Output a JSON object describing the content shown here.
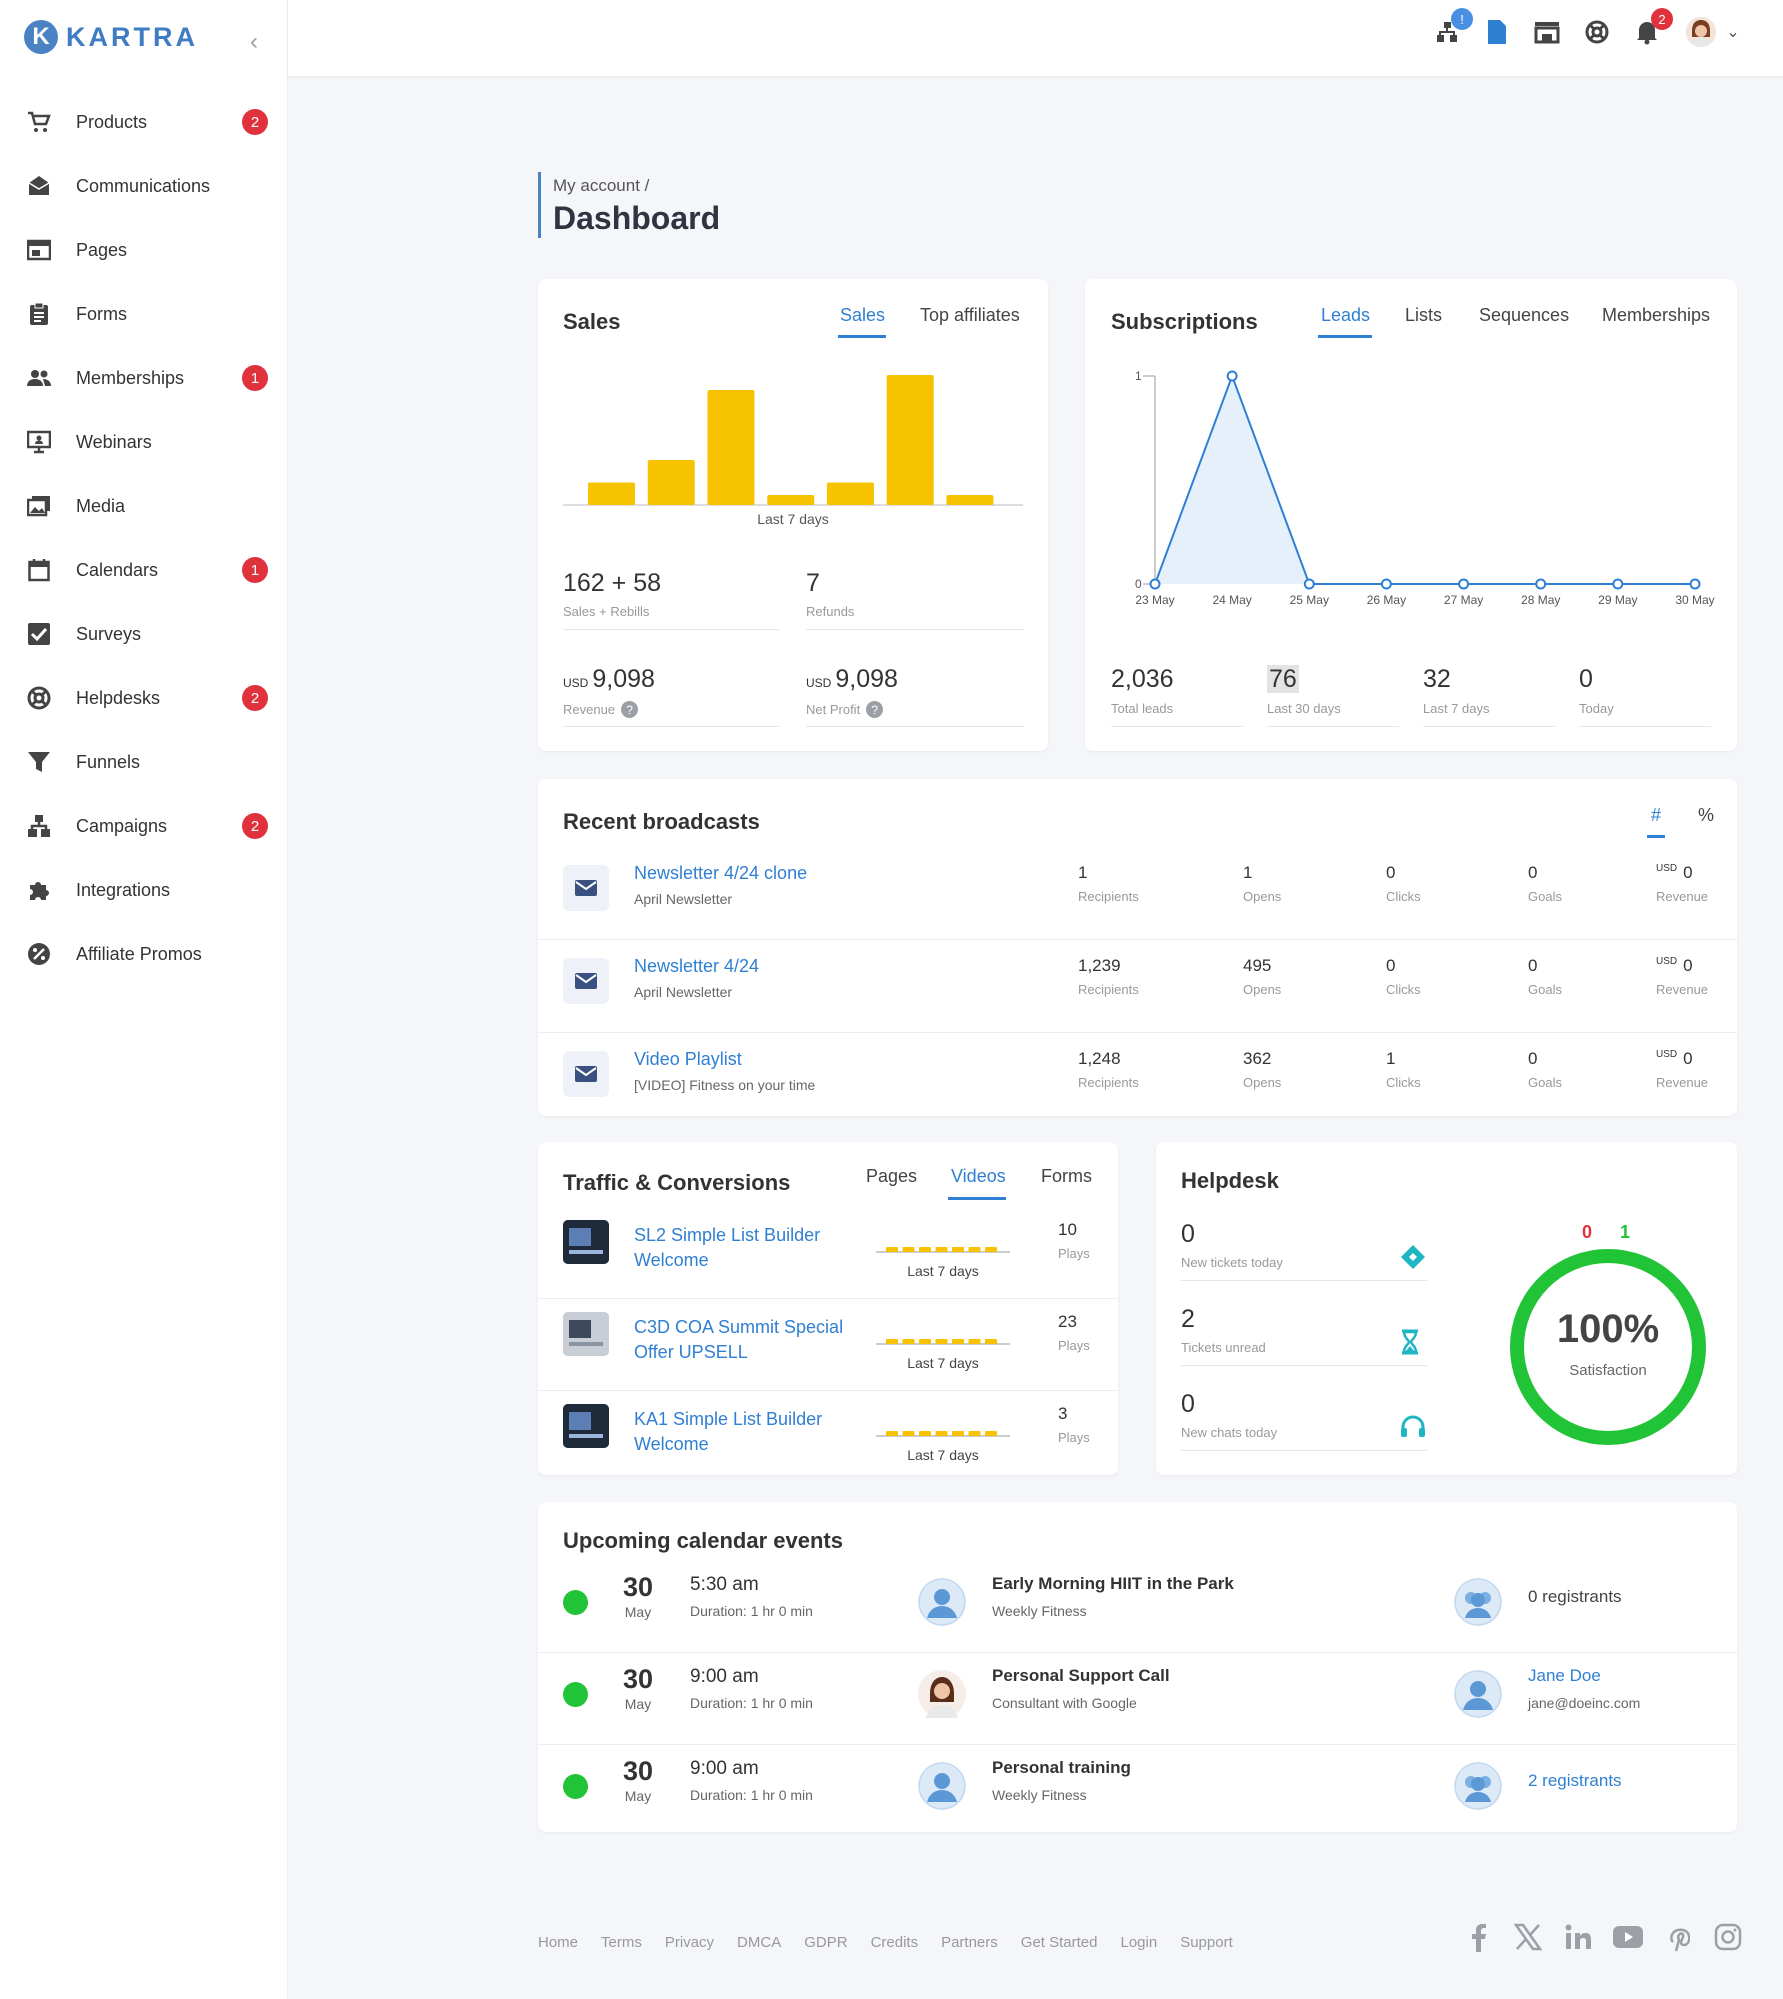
{
  "brand": {
    "name": "KARTRA",
    "accent": "#2f7fd3",
    "badge_color": "#e0323c",
    "chart_color": "#f7c300",
    "satisfaction_color": "#21c436"
  },
  "sidebar": {
    "items": [
      {
        "label": "Products",
        "icon": "cart-icon",
        "badge": "2"
      },
      {
        "label": "Communications",
        "icon": "envelope-open-icon",
        "badge": null
      },
      {
        "label": "Pages",
        "icon": "browser-window-icon",
        "badge": null
      },
      {
        "label": "Forms",
        "icon": "clipboard-icon",
        "badge": null
      },
      {
        "label": "Memberships",
        "icon": "people-icon",
        "badge": "1"
      },
      {
        "label": "Webinars",
        "icon": "presentation-icon",
        "badge": null
      },
      {
        "label": "Media",
        "icon": "photos-icon",
        "badge": null
      },
      {
        "label": "Calendars",
        "icon": "calendar-icon",
        "badge": "1"
      },
      {
        "label": "Surveys",
        "icon": "checkbox-icon",
        "badge": null
      },
      {
        "label": "Helpdesks",
        "icon": "lifebuoy-icon",
        "badge": "2"
      },
      {
        "label": "Funnels",
        "icon": "funnel-icon",
        "badge": null
      },
      {
        "label": "Campaigns",
        "icon": "sitemap-icon",
        "badge": "2"
      },
      {
        "label": "Integrations",
        "icon": "puzzle-icon",
        "badge": null
      },
      {
        "label": "Affiliate Promos",
        "icon": "percent-icon",
        "badge": null
      }
    ]
  },
  "topbar": {
    "campaign_badge": "!",
    "notifications_badge": "2"
  },
  "header": {
    "breadcrumb": "My account /",
    "title": "Dashboard"
  },
  "sales": {
    "title": "Sales",
    "tabs": [
      "Sales",
      "Top affiliates"
    ],
    "active_tab": "Sales",
    "chart_caption": "Last 7 days",
    "stats": [
      {
        "value": "162 + 58",
        "label": "Sales + Rebills"
      },
      {
        "value": "7",
        "label": "Refunds"
      },
      {
        "prefix": "USD",
        "value": "9,098",
        "label": "Revenue"
      },
      {
        "prefix": "USD",
        "value": "9,098",
        "label": "Net Profit"
      }
    ]
  },
  "subscriptions": {
    "title": "Subscriptions",
    "tabs": [
      "Leads",
      "Lists",
      "Sequences",
      "Memberships"
    ],
    "active_tab": "Leads",
    "stats": [
      {
        "value": "2,036",
        "label": "Total leads"
      },
      {
        "value": "76",
        "label": "Last 30 days"
      },
      {
        "value": "32",
        "label": "Last 7 days"
      },
      {
        "value": "0",
        "label": "Today"
      }
    ]
  },
  "chart_data": [
    {
      "type": "bar",
      "title": "",
      "xlabel": "Last 7 days",
      "ylabel": "",
      "categories": [
        "",
        "",
        "",
        "",
        "",
        "",
        "",
        ""
      ],
      "values": [
        9,
        18,
        46,
        4,
        9,
        52,
        4,
        0
      ],
      "color": "#f7c300"
    },
    {
      "type": "area",
      "title": "",
      "xlabel": "",
      "ylabel": "",
      "x": [
        "23 May",
        "24 May",
        "25 May",
        "26 May",
        "27 May",
        "28 May",
        "29 May",
        "30 May"
      ],
      "series": [
        {
          "values": [
            0,
            1,
            0,
            0,
            0,
            0,
            0,
            0
          ]
        }
      ],
      "yticks": [
        "0",
        "1"
      ],
      "ylim": [
        0,
        1
      ],
      "color": "#2f7fd3"
    }
  ],
  "broadcasts": {
    "title": "Recent broadcasts",
    "toggle": [
      "#",
      "%"
    ],
    "rows": [
      {
        "name": "Newsletter 4/24 clone",
        "sub": "April Newsletter",
        "recipients": "1",
        "opens": "1",
        "clicks": "0",
        "goals": "0",
        "revenue": "0"
      },
      {
        "name": "Newsletter 4/24",
        "sub": "April Newsletter",
        "recipients": "1,239",
        "opens": "495",
        "clicks": "0",
        "goals": "0",
        "revenue": "0"
      },
      {
        "name": "Video Playlist",
        "sub": "[VIDEO] Fitness on your time",
        "recipients": "1,248",
        "opens": "362",
        "clicks": "1",
        "goals": "0",
        "revenue": "0"
      }
    ],
    "labels": {
      "recipients": "Recipients",
      "opens": "Opens",
      "clicks": "Clicks",
      "goals": "Goals",
      "revenue": "Revenue",
      "usd": "USD"
    }
  },
  "traffic": {
    "title": "Traffic & Conversions",
    "tabs": [
      "Pages",
      "Videos",
      "Forms"
    ],
    "active_tab": "Videos",
    "rows": [
      {
        "name": "SL2 Simple List Builder Welcome",
        "caption": "Last 7 days",
        "plays": "10",
        "plays_label": "Plays"
      },
      {
        "name": "C3D COA Summit Special Offer UPSELL",
        "caption": "Last 7 days",
        "plays": "23",
        "plays_label": "Plays"
      },
      {
        "name": "KA1 Simple List Builder Welcome",
        "caption": "Last 7 days",
        "plays": "3",
        "plays_label": "Plays"
      }
    ]
  },
  "helpdesk": {
    "title": "Helpdesk",
    "stats": [
      {
        "value": "0",
        "label": "New tickets today",
        "icon": "ticket-icon"
      },
      {
        "value": "2",
        "label": "Tickets unread",
        "icon": "hourglass-icon"
      },
      {
        "value": "0",
        "label": "New chats today",
        "icon": "headset-icon"
      }
    ],
    "negative": "0",
    "positive": "1",
    "satisfaction_value": "100%",
    "satisfaction_label": "Satisfaction",
    "satisfaction_fraction": 1.0
  },
  "events": {
    "title": "Upcoming calendar events",
    "rows": [
      {
        "day": "30",
        "month": "May",
        "time": "5:30 am",
        "duration": "Duration: 1 hr 0 min",
        "name": "Early Morning HIIT in the Park",
        "calendar": "Weekly Fitness",
        "host_avatar": "generic",
        "attendee": "0 registrants",
        "attendee_sub": "",
        "attendee_link": false
      },
      {
        "day": "30",
        "month": "May",
        "time": "9:00 am",
        "duration": "Duration: 1 hr 0 min",
        "name": "Personal Support Call",
        "calendar": "Consultant with Google",
        "host_avatar": "photo",
        "attendee": "Jane Doe",
        "attendee_sub": "jane@doeinc.com",
        "attendee_link": true
      },
      {
        "day": "30",
        "month": "May",
        "time": "9:00 am",
        "duration": "Duration: 1 hr 0 min",
        "name": "Personal training",
        "calendar": "Weekly Fitness",
        "host_avatar": "generic",
        "attendee": "2 registrants",
        "attendee_sub": "",
        "attendee_link": true
      }
    ]
  },
  "footer": {
    "links": [
      "Home",
      "Terms",
      "Privacy",
      "DMCA",
      "GDPR",
      "Credits",
      "Partners",
      "Get Started",
      "Login",
      "Support"
    ],
    "social": [
      "facebook-icon",
      "x-icon",
      "linkedin-icon",
      "youtube-icon",
      "pinterest-icon",
      "instagram-icon"
    ]
  }
}
